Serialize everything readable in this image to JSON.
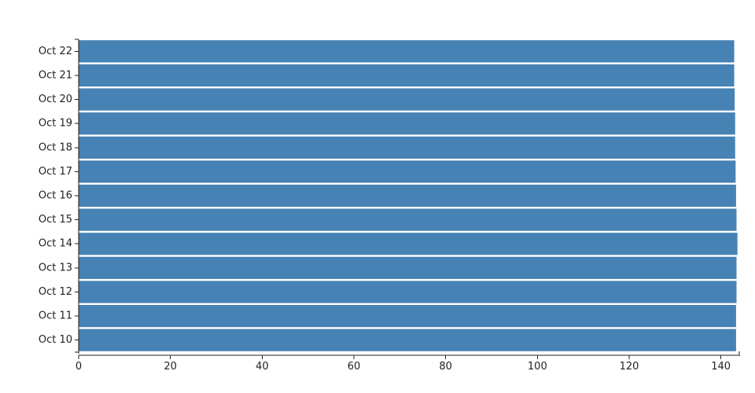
{
  "chart_data": {
    "type": "bar",
    "orientation": "horizontal",
    "categories": [
      "Oct 10",
      "Oct 11",
      "Oct 12",
      "Oct 13",
      "Oct 14",
      "Oct 15",
      "Oct 16",
      "Oct 17",
      "Oct 18",
      "Oct 19",
      "Oct 20",
      "Oct 21",
      "Oct 22"
    ],
    "values": [
      143.3,
      143.3,
      143.4,
      143.4,
      143.6,
      143.4,
      143.3,
      143.2,
      143.1,
      143.1,
      143.0,
      142.9,
      142.9
    ],
    "xlim": [
      0,
      144
    ],
    "x_ticks": [
      0,
      20,
      40,
      60,
      80,
      100,
      120,
      140
    ],
    "x_tick_labels": [
      "0",
      "20",
      "40",
      "60",
      "80",
      "100",
      "120",
      "140"
    ],
    "title": "",
    "xlabel": "",
    "ylabel": "",
    "grid": false,
    "legend": "none",
    "bar_color": "#4682b4"
  }
}
